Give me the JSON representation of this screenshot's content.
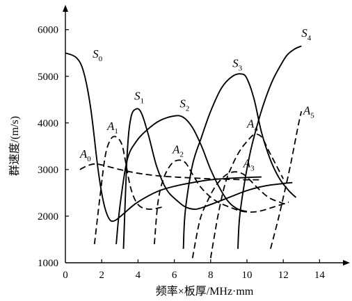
{
  "chart_data": {
    "type": "line",
    "title": "",
    "xlabel": "频率×板厚/MHz·mm",
    "ylabel": "群速度/(m/s)",
    "xlim": [
      0,
      15
    ],
    "ylim": [
      1000,
      6600
    ],
    "x_ticks": [
      "0",
      "2",
      "4",
      "6",
      "8",
      "10",
      "12",
      "14"
    ],
    "y_ticks": [
      "1000",
      "2000",
      "3000",
      "4000",
      "5000",
      "6000"
    ],
    "grid": false,
    "series": [
      {
        "name": "S0",
        "style": "solid",
        "x": [
          0.0,
          0.6,
          1.0,
          1.4,
          1.8,
          2.1,
          2.4,
          2.7,
          3.2,
          3.8,
          4.5,
          5.2,
          6.0,
          7.0,
          8.0,
          9.0,
          10.0,
          10.8
        ],
        "y": [
          5500,
          5400,
          5100,
          4300,
          3000,
          2300,
          1950,
          1900,
          2050,
          2250,
          2420,
          2550,
          2640,
          2720,
          2780,
          2810,
          2830,
          2840
        ]
      },
      {
        "name": "A0",
        "style": "dashed",
        "x": [
          0.8,
          1.2,
          1.6,
          2.0,
          3.0,
          4.0,
          5.0,
          6.0,
          7.0,
          8.0,
          9.0,
          10.0,
          10.8
        ],
        "y": [
          3000,
          3080,
          3120,
          3100,
          3000,
          2920,
          2870,
          2840,
          2820,
          2800,
          2790,
          2780,
          2780
        ]
      },
      {
        "name": "S1",
        "style": "solid",
        "x": [
          3.2,
          3.4,
          3.6,
          3.9,
          4.2,
          4.6,
          5.0,
          5.4,
          5.7,
          6.1,
          6.6,
          7.2,
          8.0,
          9.0,
          10.0,
          11.0,
          12.0,
          12.5
        ],
        "y": [
          1300,
          3300,
          4100,
          4300,
          4200,
          3700,
          3100,
          2700,
          2500,
          2350,
          2200,
          2150,
          2250,
          2400,
          2550,
          2650,
          2700,
          2720
        ]
      },
      {
        "name": "A1",
        "style": "dashed",
        "x": [
          1.6,
          1.9,
          2.2,
          2.5,
          2.8,
          3.1,
          3.3,
          3.6,
          4.0,
          4.6,
          5.4
        ],
        "y": [
          1400,
          2400,
          3300,
          3650,
          3700,
          3550,
          3200,
          2600,
          2250,
          2150,
          2200
        ]
      },
      {
        "name": "S2",
        "style": "solid",
        "x": [
          2.8,
          3.0,
          3.4,
          3.9,
          4.5,
          5.2,
          6.0,
          6.5,
          7.0,
          7.5,
          8.0,
          8.5,
          9.0,
          9.5,
          10.0
        ],
        "y": [
          1400,
          2200,
          3200,
          3600,
          3850,
          4050,
          4150,
          4120,
          3900,
          3500,
          3000,
          2600,
          2300,
          2150,
          2100
        ]
      },
      {
        "name": "A2",
        "style": "dashed",
        "x": [
          4.9,
          5.1,
          5.4,
          5.8,
          6.2,
          6.6,
          7.0,
          7.5,
          8.2,
          9.0,
          9.8,
          10.6,
          11.5,
          12.3
        ],
        "y": [
          1400,
          2300,
          2800,
          3100,
          3200,
          3150,
          2900,
          2600,
          2350,
          2200,
          2100,
          2100,
          2200,
          2300
        ]
      },
      {
        "name": "S3",
        "style": "solid",
        "x": [
          6.5,
          6.6,
          7.0,
          7.5,
          8.0,
          8.6,
          9.2,
          9.7,
          10.0,
          10.4,
          10.8,
          11.3,
          11.8,
          12.3,
          12.7
        ],
        "y": [
          1300,
          2100,
          3100,
          3700,
          4250,
          4750,
          5000,
          5050,
          4950,
          4500,
          3800,
          3200,
          2800,
          2550,
          2400
        ]
      },
      {
        "name": "A3",
        "style": "dashed",
        "x": [
          7.0,
          7.4,
          7.8,
          8.2,
          8.6,
          9.0,
          9.4,
          9.8,
          10.1,
          10.6,
          11.2,
          11.8,
          12.2
        ],
        "y": [
          1100,
          1900,
          2300,
          2600,
          2800,
          2920,
          2950,
          2900,
          2800,
          2600,
          2400,
          2300,
          2250
        ]
      },
      {
        "name": "S4",
        "style": "solid",
        "x": [
          9.5,
          9.6,
          9.9,
          10.2,
          10.6,
          11.0,
          11.4,
          11.8,
          12.2,
          12.6,
          13.0
        ],
        "y": [
          1300,
          2000,
          2800,
          3400,
          4000,
          4500,
          4900,
          5200,
          5450,
          5580,
          5650
        ]
      },
      {
        "name": "A4",
        "style": "dashed",
        "x": [
          8.0,
          8.4,
          8.8,
          9.2,
          9.6,
          10.0,
          10.4,
          10.8,
          11.2,
          11.6,
          12.0
        ],
        "y": [
          1100,
          2000,
          2700,
          3100,
          3400,
          3600,
          3750,
          3700,
          3400,
          3100,
          2800
        ]
      },
      {
        "name": "A5",
        "style": "dashed",
        "x": [
          11.3,
          11.7,
          12.0,
          12.4,
          12.8,
          13.0
        ],
        "y": [
          1300,
          1900,
          2400,
          3100,
          3900,
          4250
        ]
      }
    ],
    "curve_labels": [
      {
        "base": "S",
        "sub": "0",
        "x": 1.5,
        "y": 5400
      },
      {
        "base": "A",
        "sub": "0",
        "x": 0.8,
        "y": 3250
      },
      {
        "base": "A",
        "sub": "1",
        "x": 2.3,
        "y": 3850
      },
      {
        "base": "S",
        "sub": "1",
        "x": 3.8,
        "y": 4500
      },
      {
        "base": "S",
        "sub": "2",
        "x": 6.3,
        "y": 4330
      },
      {
        "base": "A",
        "sub": "2",
        "x": 5.9,
        "y": 3350
      },
      {
        "base": "S",
        "sub": "3",
        "x": 9.2,
        "y": 5200
      },
      {
        "base": "A",
        "sub": "3",
        "x": 9.8,
        "y": 3050
      },
      {
        "base": "A",
        "sub": "4",
        "x": 10.0,
        "y": 3900
      },
      {
        "base": "S",
        "sub": "4",
        "x": 13.0,
        "y": 5850
      },
      {
        "base": "A",
        "sub": "5",
        "x": 13.1,
        "y": 4180
      }
    ]
  }
}
